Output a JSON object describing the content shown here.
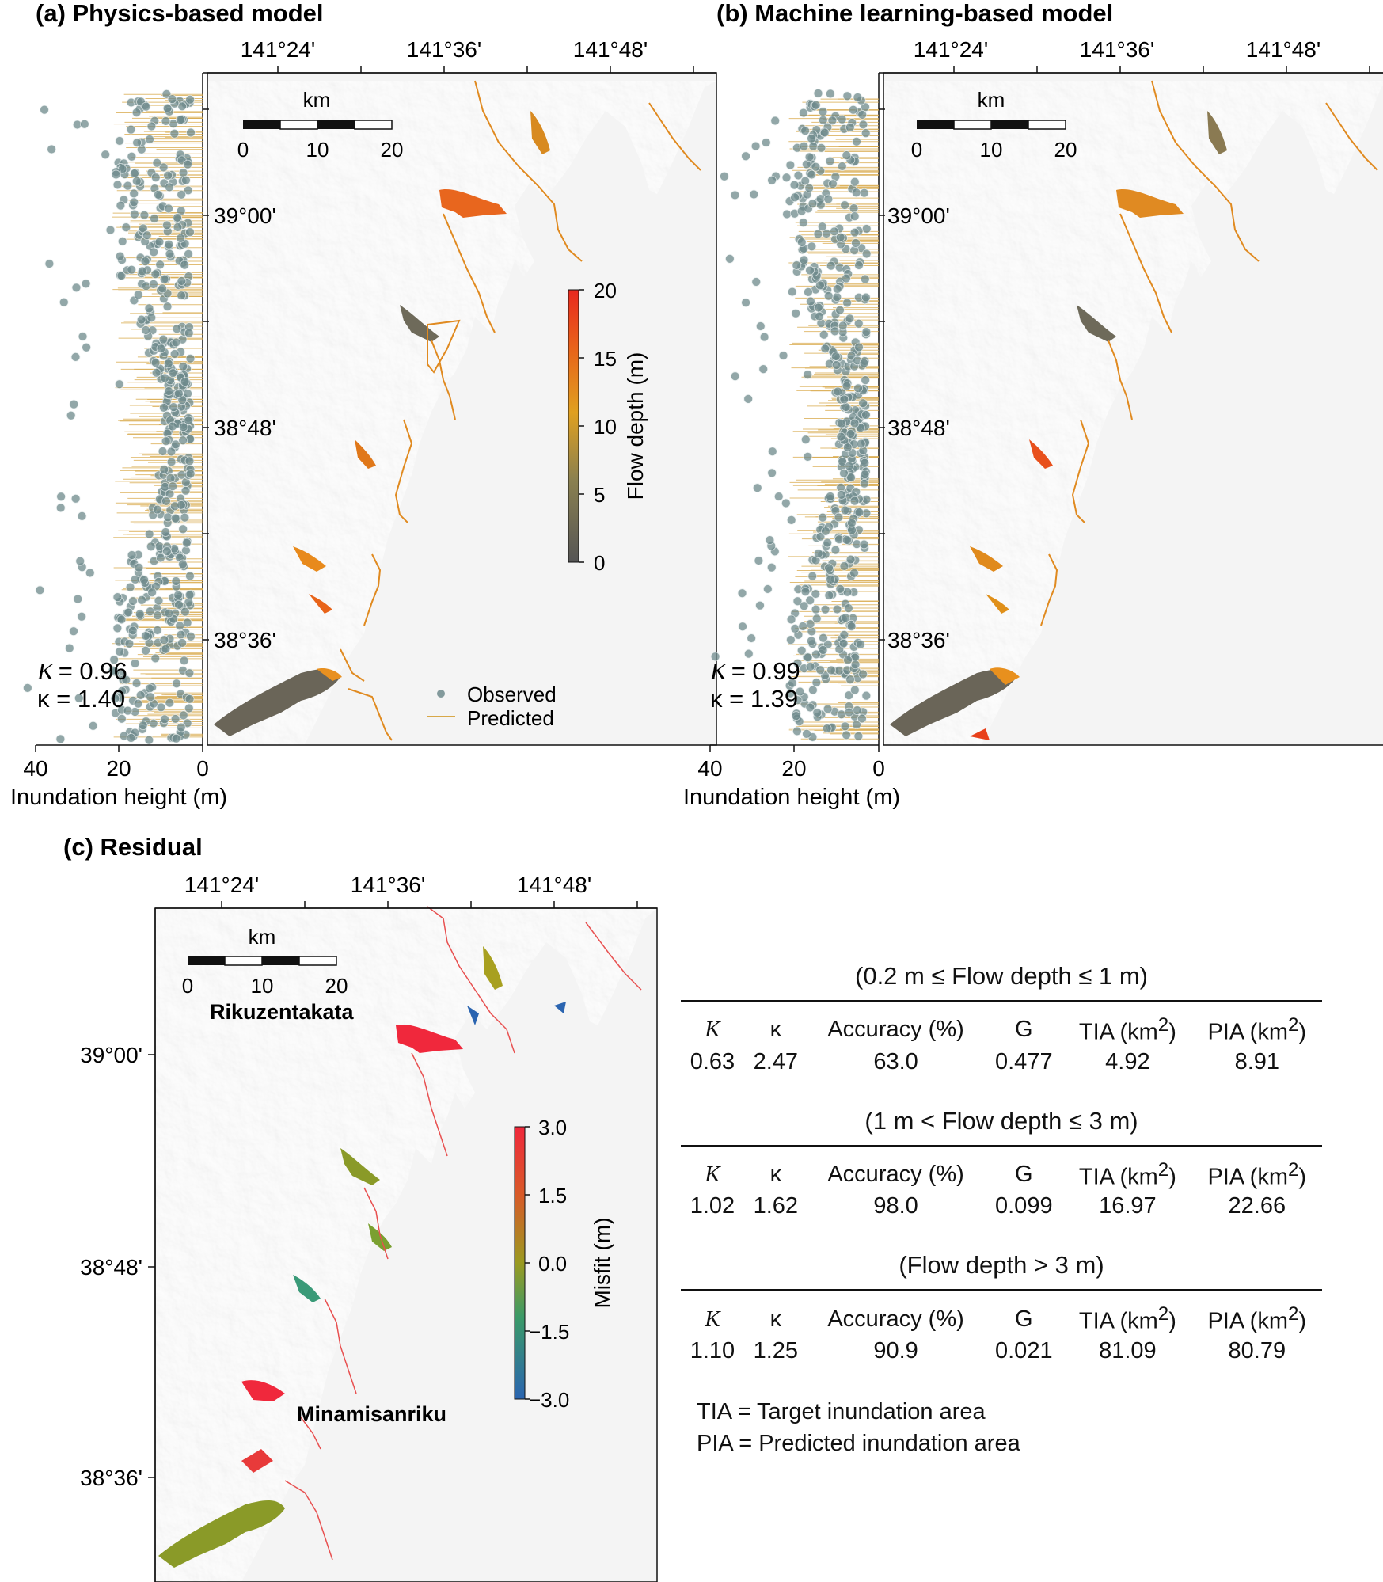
{
  "panels": {
    "a": {
      "title": "(a) Physics-based model",
      "stat_K_label": "K",
      "stat_K_value": "= 0.96",
      "stat_kappa": "κ = 1.40"
    },
    "b": {
      "title": "(b) Machine learning-based model",
      "stat_K_label": "K",
      "stat_K_value": "= 0.99",
      "stat_kappa": "κ = 1.39"
    },
    "c": {
      "title": "(c) Residual",
      "place_1": "Rikuzentakata",
      "place_2": "Minamisanriku"
    }
  },
  "map_axes": {
    "lon_ticks": [
      "141°24'",
      "141°36'",
      "141°48'"
    ],
    "lat_ticks": [
      "39°00'",
      "38°48'",
      "38°36'"
    ]
  },
  "scalebar": {
    "unit": "km",
    "ticks": [
      "0",
      "10",
      "20"
    ]
  },
  "height_axis": {
    "label": "Inundation height (m)",
    "ticks": [
      "40",
      "20",
      "0"
    ]
  },
  "legend": {
    "observed": "Observed",
    "predicted": "Predicted"
  },
  "colorbar_depth": {
    "label": "Flow depth (m)",
    "ticks": [
      "20",
      "15",
      "10",
      "5",
      "0"
    ],
    "colors": [
      "#e8281e",
      "#e8641a",
      "#e0a020",
      "#8a8050",
      "#555555"
    ]
  },
  "colorbar_misfit": {
    "label": "Misfit (m)",
    "ticks": [
      "3.0",
      "1.5",
      "0.0",
      "−1.5",
      "−3.0"
    ],
    "colors": [
      "#f0283c",
      "#d85a28",
      "#9a9a20",
      "#3a9a68",
      "#2a64b0"
    ]
  },
  "colors": {
    "observed_point": "#6e8a8c",
    "predicted_line": "#d8a848",
    "coast": "#e08a20"
  },
  "stats_table": {
    "headers": {
      "K": "K",
      "kappa": "κ",
      "accuracy": "Accuracy (%)",
      "G": "G",
      "tia": "TIA (km",
      "pia": "PIA (km",
      "sup": "2",
      "close": ")"
    },
    "sections": [
      {
        "caption": "(0.2 m ≤ Flow depth ≤ 1 m)",
        "K": "0.63",
        "kappa": "2.47",
        "accuracy": "63.0",
        "G": "0.477",
        "tia": "4.92",
        "pia": "8.91"
      },
      {
        "caption": "(1 m < Flow depth ≤ 3 m)",
        "K": "1.02",
        "kappa": "1.62",
        "accuracy": "98.0",
        "G": "0.099",
        "tia": "16.97",
        "pia": "22.66"
      },
      {
        "caption": "(Flow depth > 3 m)",
        "K": "1.10",
        "kappa": "1.25",
        "accuracy": "90.9",
        "G": "0.021",
        "tia": "81.09",
        "pia": "80.79"
      }
    ],
    "definitions": [
      "TIA = Target inundation area",
      "PIA = Predicted inundation area"
    ]
  }
}
